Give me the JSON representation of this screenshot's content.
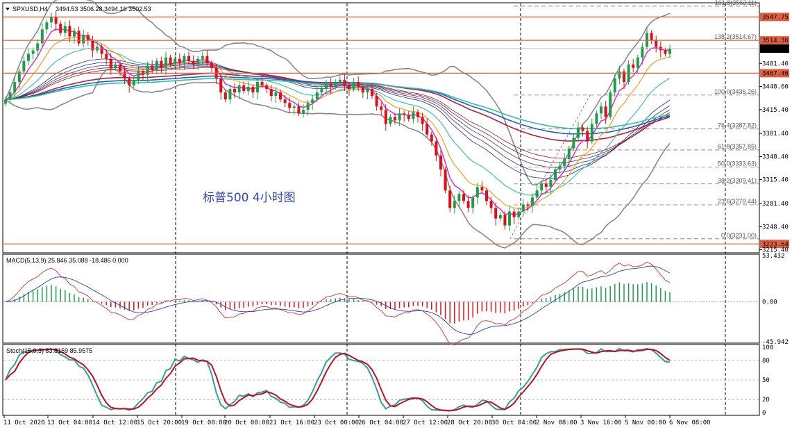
{
  "header": {
    "symbol": "SPXUSD,H4",
    "ohlc": "3494.53 3506.28 3494.16 3502.53"
  },
  "annotation_text": "标普500  4小时图",
  "chart_data": {
    "type": "candlestick",
    "price_axis": {
      "ylim": [
        3211,
        3568
      ],
      "ticks": [
        "3481.40",
        "3448.60",
        "3415.40",
        "3381.40",
        "3348.40",
        "3315.40",
        "3281.40",
        "3248.40",
        "3215.40"
      ],
      "tick_values": [
        3481.4,
        3448.6,
        3415.4,
        3381.4,
        3348.4,
        3315.4,
        3281.4,
        3248.4,
        3215.4
      ]
    },
    "horizontal_lines": [
      {
        "label": "3547.75",
        "value": 3547.75,
        "color": "#e06040"
      },
      {
        "label": "3514.36",
        "value": 3514.36,
        "color": "#e06040"
      },
      {
        "label": "3467.46",
        "value": 3467.46,
        "color": "#e06040"
      },
      {
        "label": "3223.64",
        "value": 3223.64,
        "color": "#e06040"
      }
    ],
    "current_price": {
      "label": "3502.53",
      "value": 3502.53
    },
    "fibonacci": [
      {
        "label": "161.8(3563.11)",
        "value": 3563.11
      },
      {
        "label": "138.2(3514.67)",
        "value": 3514.67
      },
      {
        "label": "100.0(3436.26)",
        "value": 3436.26
      },
      {
        "label": "76.4(3387.82)",
        "value": 3387.82
      },
      {
        "label": "61.8(3357.85)",
        "value": 3357.85
      },
      {
        "label": "50.0(3333.63)",
        "value": 3333.63
      },
      {
        "label": "38.2(3309.41)",
        "value": 3309.41
      },
      {
        "label": "23.6(3279.44)",
        "value": 3279.44
      },
      {
        "label": "0.0(3231.00)",
        "value": 3231.0
      }
    ],
    "x_labels": [
      "11 Oct 2020",
      "13 Oct 04:00",
      "14 Oct 12:00",
      "15 Oct 20:00",
      "19 Oct 00:00",
      "20 Oct 08:00",
      "21 Oct 16:00",
      "23 Oct 00:00",
      "26 Oct 04:00",
      "27 Oct 12:00",
      "28 Oct 20:00",
      "30 Oct 04:00",
      "2 Nov 08:00",
      "3 Nov 16:00",
      "5 Nov 00:00",
      "6 Nov 08:00"
    ],
    "candles_close": [
      3430,
      3440,
      3455,
      3470,
      3485,
      3495,
      3500,
      3510,
      3530,
      3540,
      3548,
      3538,
      3525,
      3535,
      3520,
      3528,
      3510,
      3522,
      3515,
      3500,
      3505,
      3495,
      3488,
      3475,
      3480,
      3470,
      3460,
      3450,
      3458,
      3470,
      3465,
      3478,
      3472,
      3485,
      3475,
      3490,
      3480,
      3488,
      3482,
      3492,
      3485,
      3480,
      3488,
      3492,
      3482,
      3475,
      3460,
      3440,
      3430,
      3445,
      3440,
      3450,
      3442,
      3448,
      3440,
      3455,
      3450,
      3445,
      3435,
      3440,
      3430,
      3425,
      3418,
      3420,
      3410,
      3415,
      3425,
      3430,
      3440,
      3445,
      3452,
      3448,
      3455,
      3458,
      3450,
      3445,
      3455,
      3448,
      3440,
      3445,
      3435,
      3420,
      3415,
      3395,
      3405,
      3400,
      3410,
      3408,
      3402,
      3412,
      3405,
      3395,
      3380,
      3370,
      3350,
      3330,
      3300,
      3275,
      3285,
      3295,
      3285,
      3275,
      3290,
      3305,
      3300,
      3285,
      3275,
      3260,
      3265,
      3250,
      3270,
      3262,
      3270,
      3280,
      3278,
      3290,
      3300,
      3310,
      3305,
      3315,
      3330,
      3335,
      3345,
      3360,
      3375,
      3390,
      3385,
      3370,
      3395,
      3410,
      3420,
      3405,
      3440,
      3460,
      3470,
      3455,
      3480,
      3475,
      3490,
      3505,
      3525,
      3515,
      3505,
      3500,
      3495,
      3502.53
    ],
    "indicators": [
      {
        "name": "MACD(5,13,9)",
        "values": [
          "25.846",
          "35.088",
          "-18.486",
          "0.000"
        ],
        "axis_ticks": [
          "53.432",
          "0.00",
          "-45.942"
        ],
        "axis_values": [
          53.432,
          0,
          -45.942
        ]
      },
      {
        "name": "Stoch(15,9,3)",
        "values": [
          "83.8159",
          "85.9575"
        ],
        "axis_ticks": [
          "100",
          "80",
          "50",
          "20",
          "0"
        ],
        "axis_values": [
          100,
          80,
          50,
          20,
          0
        ]
      }
    ]
  }
}
